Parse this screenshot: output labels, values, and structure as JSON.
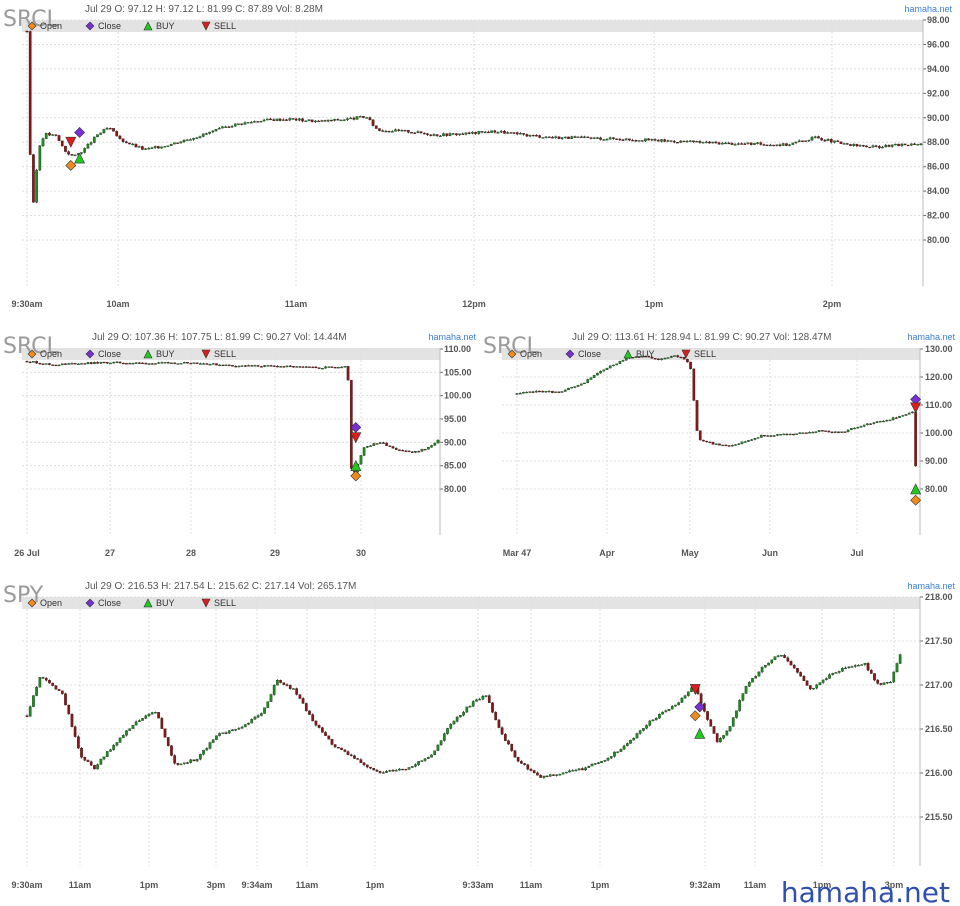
{
  "source_label": "hamaha.net",
  "watermark": "hamaha.net",
  "colors": {
    "up": "#1c8c1c",
    "down": "#8b1414",
    "open": "#f08a1c",
    "close": "#7a2ed6",
    "buy": "#22c822",
    "sell": "#dd1c1c",
    "legend_bar": "#e3e3e3"
  },
  "legend_labels": [
    "Open",
    "Close",
    "BUY",
    "SELL"
  ],
  "chart_data": [
    {
      "type": "candlestick",
      "symbol": "SRCL",
      "info": {
        "date": "Jul 29",
        "open": "O: 97.12",
        "high": "H: 97.12",
        "low": "L: 81.99",
        "close": "C: 87.89",
        "volume": "Vol: 8.28M"
      },
      "xticks": [
        "9:30am",
        "10am",
        "11am",
        "12pm",
        "1pm",
        "2pm"
      ],
      "yticks": [
        "98.00",
        "96.00",
        "94.00",
        "92.00",
        "90.00",
        "88.00",
        "86.00",
        "84.00",
        "82.00",
        "80.00"
      ],
      "ylim": [
        76.0,
        98.5
      ],
      "series": [
        [
          0,
          97.1
        ],
        [
          0.05,
          90.0
        ],
        [
          0.2,
          82.5
        ],
        [
          0.4,
          87.5
        ],
        [
          0.6,
          88.7
        ],
        [
          1.0,
          88.5
        ],
        [
          1.3,
          87.3
        ],
        [
          1.6,
          86.8
        ],
        [
          2.0,
          87.5
        ],
        [
          2.4,
          88.6
        ],
        [
          2.8,
          89.2
        ],
        [
          3.2,
          88.2
        ],
        [
          3.6,
          87.8
        ],
        [
          4.0,
          87.4
        ],
        [
          4.5,
          87.6
        ],
        [
          5.0,
          87.9
        ],
        [
          6.0,
          88.6
        ],
        [
          7.0,
          89.4
        ],
        [
          8.0,
          89.8
        ],
        [
          9.0,
          89.9
        ],
        [
          10.0,
          89.7
        ],
        [
          11.0,
          89.9
        ],
        [
          11.6,
          90.1
        ],
        [
          12.0,
          89.0
        ],
        [
          13.0,
          88.9
        ],
        [
          14.0,
          88.6
        ],
        [
          15.0,
          88.7
        ],
        [
          16.0,
          88.9
        ],
        [
          17.0,
          88.6
        ],
        [
          18.0,
          88.4
        ],
        [
          20.0,
          88.3
        ],
        [
          22.0,
          88.1
        ],
        [
          24.0,
          87.9
        ],
        [
          26.0,
          87.8
        ],
        [
          27.0,
          88.4
        ],
        [
          28.0,
          87.8
        ],
        [
          29.0,
          87.6
        ],
        [
          30.0,
          87.8
        ],
        [
          30.6,
          87.9
        ]
      ],
      "markers": [
        {
          "kind": "open",
          "x": 1.5,
          "y": 86.1
        },
        {
          "kind": "close",
          "x": 1.8,
          "y": 88.8
        },
        {
          "kind": "buy",
          "x": 1.8,
          "y": 86.7
        },
        {
          "kind": "sell",
          "x": 1.5,
          "y": 88.0
        }
      ]
    },
    {
      "type": "candlestick",
      "symbol": "SRCL",
      "info": {
        "date": "Jul 29",
        "open": "O: 107.36",
        "high": "H: 107.75",
        "low": "L: 81.99",
        "close": "C: 90.27",
        "volume": "Vol: 14.44M"
      },
      "xticks": [
        "26 Jul",
        "27",
        "28",
        "29",
        "30"
      ],
      "yticks": [
        "110.00",
        "105.00",
        "100.00",
        "95.00",
        "90.00",
        "85.00",
        "80.00"
      ],
      "ylim": [
        71.0,
        111.0
      ],
      "series": [
        [
          0,
          107.4
        ],
        [
          0.3,
          106.6
        ],
        [
          0.6,
          106.9
        ],
        [
          1.0,
          107.1
        ],
        [
          1.5,
          106.9
        ],
        [
          2.0,
          107.1
        ],
        [
          2.5,
          106.4
        ],
        [
          3.0,
          106.3
        ],
        [
          3.5,
          106.0
        ],
        [
          3.9,
          106.3
        ],
        [
          3.95,
          82.0
        ],
        [
          4.1,
          89.0
        ],
        [
          4.3,
          90.0
        ],
        [
          4.5,
          88.5
        ],
        [
          4.7,
          87.8
        ],
        [
          4.9,
          89.0
        ],
        [
          5.0,
          90.3
        ]
      ],
      "markers": [
        {
          "kind": "open",
          "x": 4.0,
          "y": 82.8
        },
        {
          "kind": "close",
          "x": 4.0,
          "y": 93.2
        },
        {
          "kind": "buy",
          "x": 4.0,
          "y": 85.0
        },
        {
          "kind": "sell",
          "x": 4.0,
          "y": 91.0
        }
      ]
    },
    {
      "type": "candlestick",
      "symbol": "SRCL",
      "info": {
        "date": "Jul 29",
        "open": "O: 113.61",
        "high": "H: 128.94",
        "low": "L: 81.99",
        "close": "C: 90.27",
        "volume": "Vol: 128.47M"
      },
      "xticks": [
        "Mar 47",
        "Apr",
        "May",
        "Jun",
        "Jul"
      ],
      "yticks": [
        "130.00",
        "120.00",
        "110.00",
        "100.00",
        "90.00",
        "80.00"
      ],
      "ylim": [
        62.0,
        132.0
      ],
      "series": [
        [
          0,
          114.0
        ],
        [
          0.3,
          115.0
        ],
        [
          0.5,
          114.5
        ],
        [
          0.8,
          117.0
        ],
        [
          1.0,
          121.0
        ],
        [
          1.2,
          124.0
        ],
        [
          1.4,
          127.0
        ],
        [
          1.6,
          127.5
        ],
        [
          1.8,
          126.0
        ],
        [
          2.0,
          128.0
        ],
        [
          2.2,
          125.0
        ],
        [
          2.3,
          98.0
        ],
        [
          2.5,
          96.0
        ],
        [
          2.7,
          95.5
        ],
        [
          2.9,
          97.0
        ],
        [
          3.1,
          99.0
        ],
        [
          3.5,
          99.5
        ],
        [
          3.9,
          101.0
        ],
        [
          4.1,
          100.0
        ],
        [
          4.3,
          102.0
        ],
        [
          4.6,
          104.0
        ],
        [
          4.9,
          106.0
        ],
        [
          5.05,
          108.0
        ],
        [
          5.07,
          88.0
        ]
      ],
      "markers": [
        {
          "kind": "open",
          "x": 5.07,
          "y": 76.0
        },
        {
          "kind": "close",
          "x": 5.07,
          "y": 112.0
        },
        {
          "kind": "buy",
          "x": 5.07,
          "y": 80.0
        },
        {
          "kind": "sell",
          "x": 5.07,
          "y": 109.0
        }
      ]
    },
    {
      "type": "candlestick",
      "symbol": "SPY",
      "info": {
        "date": "Jul 29",
        "open": "O: 216.53",
        "high": "H: 217.54",
        "low": "L: 215.62",
        "close": "C: 217.14",
        "volume": "Vol: 265.17M"
      },
      "xticks": [
        "9:30am",
        "11am",
        "1pm",
        "3pm",
        "9:34am",
        "11am",
        "1pm",
        "9:33am",
        "11am",
        "1pm",
        "9:32am",
        "11am",
        "1pm",
        "3pm"
      ],
      "yticks": [
        "218.00",
        "217.50",
        "217.00",
        "216.50",
        "216.00",
        "215.50"
      ],
      "ylim": [
        215.3,
        218.1
      ],
      "series": [
        [
          0,
          216.65
        ],
        [
          0.3,
          217.1
        ],
        [
          0.8,
          216.9
        ],
        [
          1.2,
          216.2
        ],
        [
          1.5,
          216.05
        ],
        [
          2.0,
          216.35
        ],
        [
          2.5,
          216.6
        ],
        [
          2.9,
          216.7
        ],
        [
          3.3,
          216.1
        ],
        [
          3.8,
          216.15
        ],
        [
          4.3,
          216.45
        ],
        [
          4.8,
          216.5
        ],
        [
          5.3,
          216.7
        ],
        [
          5.6,
          217.05
        ],
        [
          6.0,
          216.95
        ],
        [
          6.4,
          216.6
        ],
        [
          6.9,
          216.3
        ],
        [
          7.4,
          216.15
        ],
        [
          7.9,
          216.0
        ],
        [
          8.5,
          216.05
        ],
        [
          9.1,
          216.2
        ],
        [
          9.5,
          216.55
        ],
        [
          10.0,
          216.8
        ],
        [
          10.3,
          216.9
        ],
        [
          10.6,
          216.5
        ],
        [
          11.0,
          216.15
        ],
        [
          11.5,
          215.95
        ],
        [
          12.0,
          216.0
        ],
        [
          12.5,
          216.05
        ],
        [
          13.0,
          216.15
        ],
        [
          13.5,
          216.35
        ],
        [
          14.0,
          216.6
        ],
        [
          14.5,
          216.75
        ],
        [
          15.0,
          217.0
        ],
        [
          15.2,
          216.7
        ],
        [
          15.5,
          216.35
        ],
        [
          15.8,
          216.55
        ],
        [
          16.1,
          216.95
        ],
        [
          16.5,
          217.2
        ],
        [
          16.9,
          217.35
        ],
        [
          17.2,
          217.2
        ],
        [
          17.6,
          216.95
        ],
        [
          18.0,
          217.1
        ],
        [
          18.4,
          217.2
        ],
        [
          18.8,
          217.25
        ],
        [
          19.1,
          217.0
        ],
        [
          19.4,
          217.05
        ],
        [
          19.6,
          217.35
        ]
      ],
      "markers": [
        {
          "kind": "open",
          "x": 15.0,
          "y": 216.65
        },
        {
          "kind": "close",
          "x": 15.1,
          "y": 216.75
        },
        {
          "kind": "buy",
          "x": 15.1,
          "y": 216.45
        },
        {
          "kind": "sell",
          "x": 15.0,
          "y": 216.95
        }
      ]
    }
  ]
}
